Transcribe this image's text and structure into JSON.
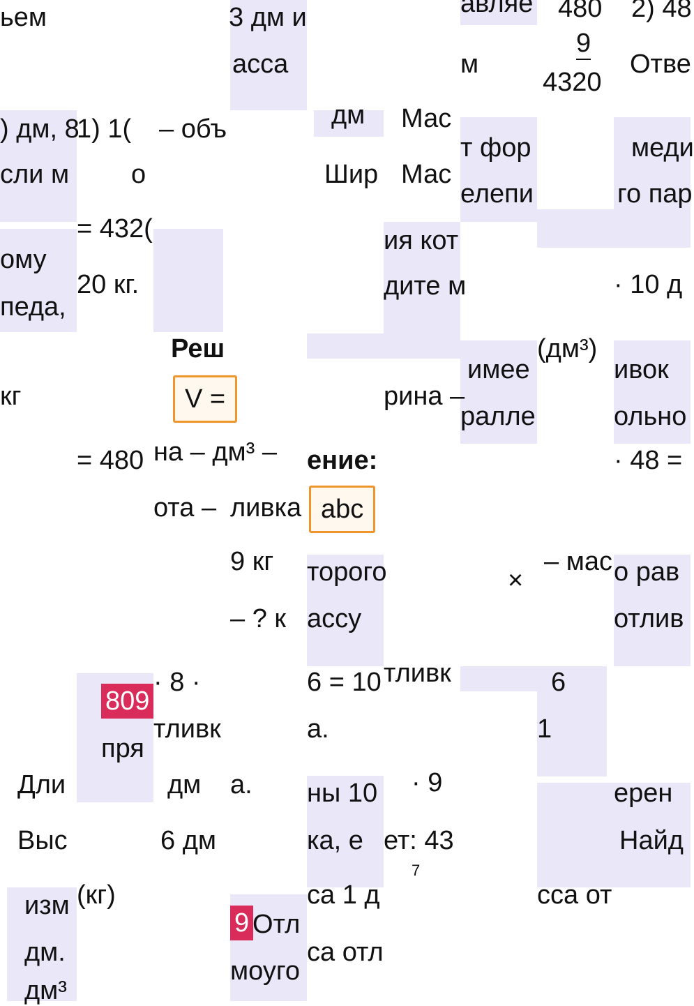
{
  "fragments": [
    "ьем",
    "3 дм и",
    "авляе",
    "480",
    "2) 48",
    "асса",
    "м",
    "9",
    "4320",
    "Отве",
    "дм",
    "Мас",
    ") дм, 8",
    "1) 1(",
    "– объ",
    "т фор",
    "меди",
    "сли м",
    "о",
    "Шир",
    "Мас",
    "елепи",
    "го пар",
    "= 432(",
    "ия кот",
    "ому",
    "20 кг.",
    "дите м",
    "· 10 д",
    "педа,",
    "Реш",
    "(дм³)",
    "имее",
    "ивок",
    "кг",
    "V =",
    "рина –",
    "ралле",
    "ольно",
    "= 480",
    "на – дм³ –",
    "ение:",
    "· 48 =",
    "ота –",
    "ливка",
    "abc",
    "9 кг",
    "торого",
    "– мас",
    "о рав",
    "×",
    "– ? к",
    "ассу",
    "отлив",
    "· 8 ·",
    "6 = 10",
    "тливк",
    "6",
    "809",
    "тливк",
    "а.",
    "1",
    "пря",
    "Дли",
    "дм",
    "а.",
    "ны 10",
    "· 9",
    "ерен",
    "Выс",
    "6 дм",
    "ка, е",
    "ет: 43",
    "Найд",
    "7",
    "изм",
    "(кг)",
    "са 1 д",
    "сса от",
    "9",
    "Отл",
    "дм.",
    "са отл",
    "моуго",
    "дм³"
  ]
}
